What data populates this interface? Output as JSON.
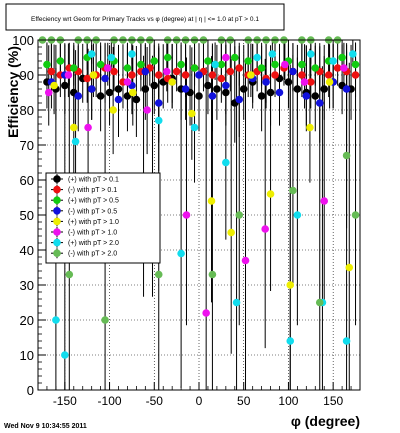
{
  "chart_data": {
    "type": "scatter",
    "title": "Effeciency wrt Geom for Primary Tracks vs φ (degree) at |  η |  <= 1.0 at pT > 0.1",
    "xlabel": "φ (degree)",
    "ylabel": "Efficiency (%)",
    "xlim": [
      -180,
      180
    ],
    "ylim": [
      0,
      100
    ],
    "x_ticks": [
      -150,
      -100,
      -50,
      0,
      50,
      100,
      150
    ],
    "y_ticks": [
      0,
      10,
      20,
      30,
      40,
      50,
      60,
      70,
      80,
      90,
      100
    ],
    "grid": true,
    "legend_placement": "middle-left",
    "footer": "Wed Nov  9 10:34:55 2011",
    "series": [
      {
        "name": "(+) with pT > 0.1",
        "color": "#000000",
        "x": [
          -170,
          -160,
          -150,
          -140,
          -130,
          -120,
          -110,
          -100,
          -90,
          -80,
          -70,
          -60,
          -50,
          -40,
          -30,
          -20,
          -10,
          0,
          10,
          20,
          30,
          40,
          50,
          60,
          70,
          80,
          90,
          100,
          110,
          120,
          130,
          140,
          150,
          160,
          170
        ],
        "y": [
          88,
          86,
          87,
          85,
          89,
          86,
          84,
          85,
          86,
          84,
          83,
          86,
          87,
          88,
          89,
          86,
          85,
          84,
          87,
          86,
          85,
          82,
          86,
          88,
          84,
          85,
          89,
          88,
          86,
          85,
          84,
          86,
          88,
          87,
          86
        ]
      },
      {
        "name": "(-) with pT > 0.1",
        "color": "#ee1111",
        "x": [
          -165,
          -155,
          -145,
          -135,
          -125,
          -115,
          -105,
          -95,
          -85,
          -75,
          -65,
          -55,
          -45,
          -35,
          -25,
          -15,
          -5,
          5,
          15,
          25,
          35,
          45,
          55,
          65,
          75,
          85,
          95,
          105,
          115,
          125,
          135,
          145,
          155,
          165,
          175
        ],
        "y": [
          91,
          90,
          92,
          91,
          89,
          90,
          92,
          91,
          88,
          90,
          91,
          92,
          90,
          89,
          91,
          90,
          92,
          91,
          90,
          89,
          91,
          92,
          90,
          91,
          89,
          90,
          92,
          91,
          90,
          88,
          91,
          90,
          92,
          91,
          90
        ]
      },
      {
        "name": "(+) with pT > 0.5",
        "color": "#11cc11",
        "x": [
          -170,
          -155,
          -140,
          -125,
          -110,
          -95,
          -80,
          -65,
          -50,
          -35,
          -20,
          -5,
          10,
          25,
          40,
          55,
          70,
          85,
          100,
          115,
          130,
          145,
          160,
          175
        ],
        "y": [
          93,
          94,
          92,
          95,
          93,
          94,
          92,
          93,
          94,
          95,
          93,
          92,
          94,
          93,
          95,
          94,
          92,
          93,
          94,
          93,
          92,
          94,
          95,
          93
        ]
      },
      {
        "name": "(-) with pT > 0.5",
        "color": "#1111dd",
        "x": [
          -165,
          -150,
          -135,
          -120,
          -105,
          -90,
          -75,
          -60,
          -45,
          -30,
          -15,
          0,
          15,
          30,
          45,
          60,
          75,
          90,
          105,
          120,
          135,
          150,
          165
        ],
        "y": [
          88,
          90,
          84,
          86,
          89,
          83,
          87,
          91,
          82,
          88,
          86,
          90,
          84,
          87,
          83,
          89,
          88,
          85,
          91,
          84,
          82,
          88,
          86
        ]
      },
      {
        "name": "(+) with pT > 1.0",
        "color": "#eeee00",
        "x": [
          -162,
          -140,
          -118,
          -96,
          -74,
          -52,
          -30,
          -8,
          14,
          36,
          58,
          80,
          102,
          124,
          146,
          168
        ],
        "y": [
          87,
          75,
          90,
          80,
          85,
          55,
          88,
          79,
          54,
          45,
          90,
          56,
          30,
          75,
          88,
          35
        ]
      },
      {
        "name": "(-) with pT > 1.0",
        "color": "#ee11ee",
        "x": [
          -168,
          -146,
          -124,
          -102,
          -80,
          -58,
          -36,
          -14,
          8,
          30,
          52,
          74,
          96,
          118,
          140,
          162
        ],
        "y": [
          85,
          90,
          75,
          92,
          88,
          80,
          91,
          50,
          22,
          95,
          37,
          46,
          93,
          88,
          54,
          92
        ]
      },
      {
        "name": "(+) with pT > 2.0",
        "color": "#11ddee",
        "x": [
          -160,
          -150,
          -138,
          -120,
          -98,
          -75,
          -62,
          -45,
          -20,
          -5,
          18,
          30,
          42,
          65,
          82,
          102,
          110,
          125,
          138,
          150,
          165,
          172
        ],
        "y": [
          20,
          10,
          71,
          96,
          95,
          96,
          55,
          77,
          39,
          75,
          93,
          65,
          25,
          95,
          96,
          14,
          50,
          96,
          25,
          94,
          14,
          96
        ]
      },
      {
        "name": "(-) with pT > 2.0",
        "color": "#66bb55",
        "x": [
          -175,
          -165,
          -155,
          -145,
          -135,
          -125,
          -115,
          -105,
          -95,
          -85,
          -75,
          -65,
          -55,
          -45,
          -35,
          -25,
          -15,
          -5,
          5,
          15,
          25,
          35,
          45,
          55,
          65,
          75,
          85,
          95,
          105,
          115,
          125,
          135,
          145,
          155,
          165,
          175
        ],
        "y": [
          100,
          100,
          100,
          33,
          100,
          100,
          100,
          20,
          100,
          100,
          100,
          100,
          100,
          33,
          100,
          100,
          100,
          100,
          100,
          33,
          100,
          100,
          50,
          100,
          100,
          100,
          100,
          100,
          57,
          100,
          100,
          25,
          100,
          100,
          67,
          50
        ]
      }
    ]
  }
}
